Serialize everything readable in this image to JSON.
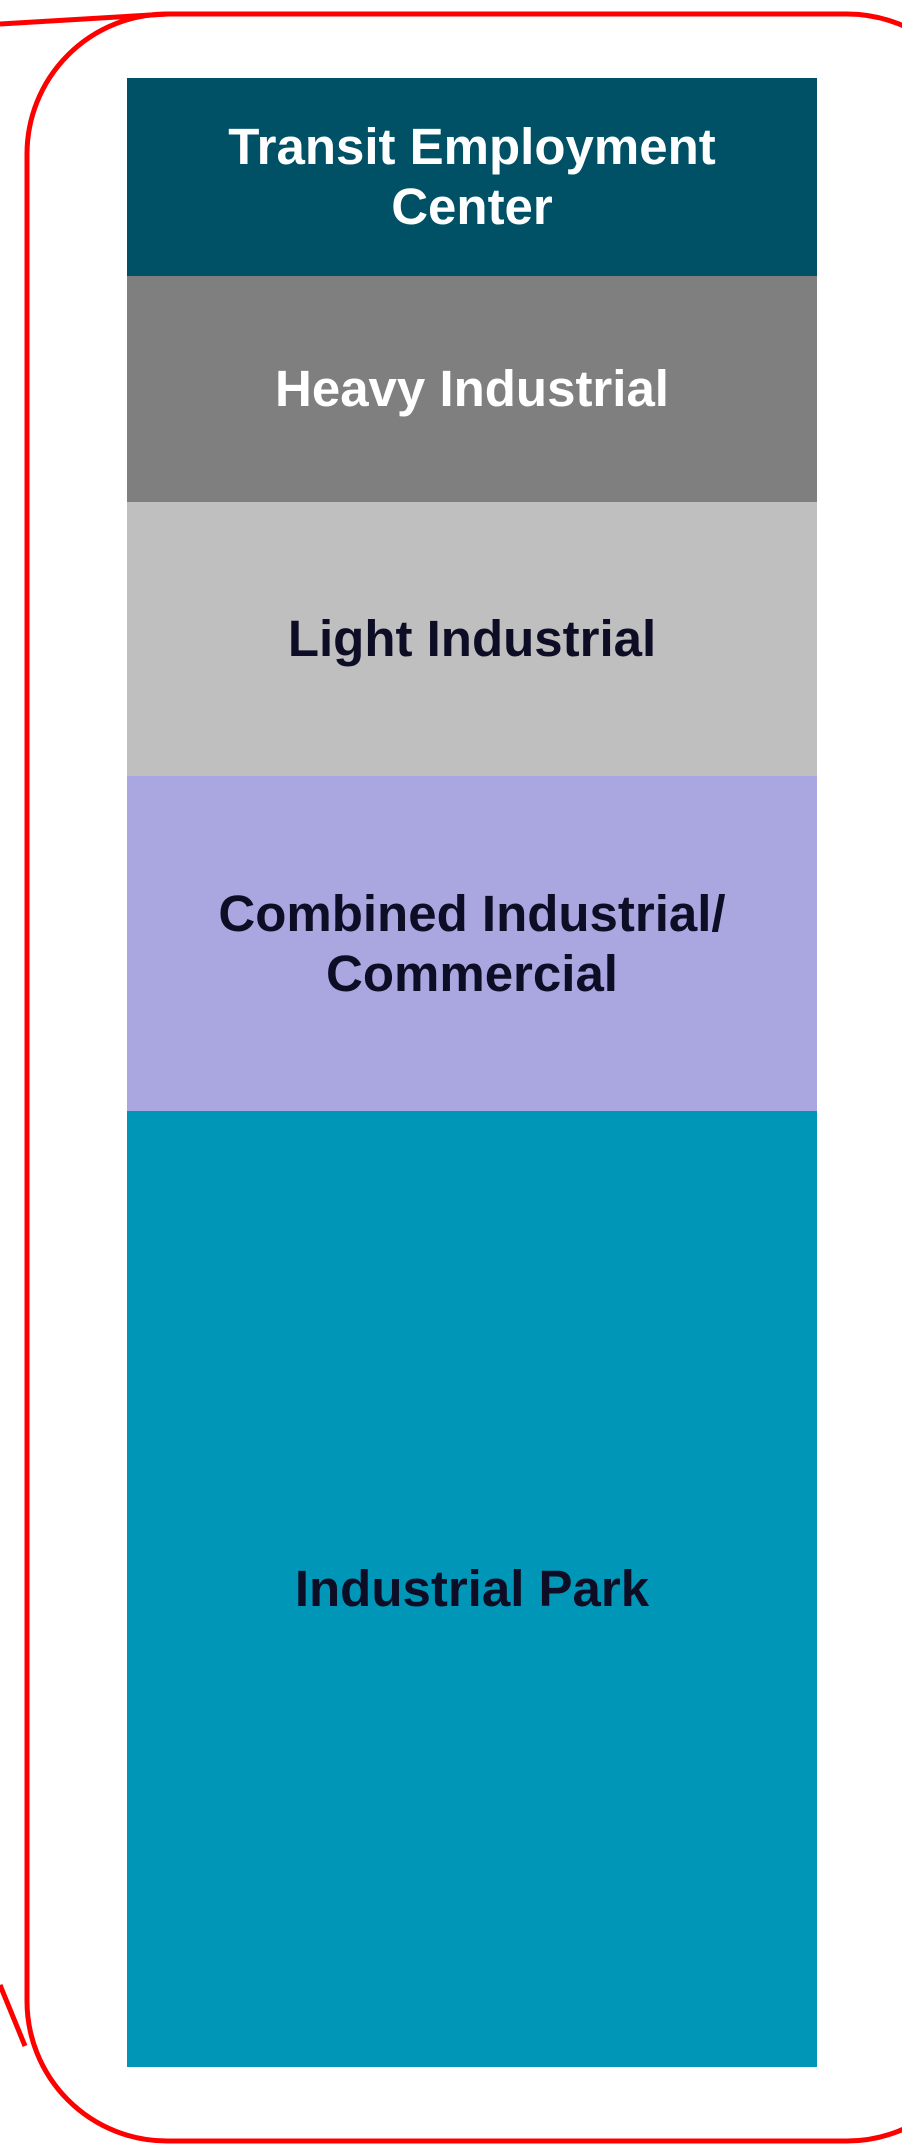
{
  "blocks": [
    {
      "label": [
        "Transit Employment",
        "Center"
      ],
      "color": "#005066",
      "text_color": "#ffffff"
    },
    {
      "label": [
        "Heavy Industrial"
      ],
      "color": "#7f7f7f",
      "text_color": "#ffffff"
    },
    {
      "label": [
        "Light Industrial"
      ],
      "color": "#bfbfbf",
      "text_color": "#0d0d26"
    },
    {
      "label": [
        "Combined Industrial/",
        "Commercial"
      ],
      "color": "#a9a6e0",
      "text_color": "#0d0d26"
    },
    {
      "label": [
        "Industrial Park"
      ],
      "color": "#0096b8",
      "text_color": "#0d0d26"
    }
  ]
}
